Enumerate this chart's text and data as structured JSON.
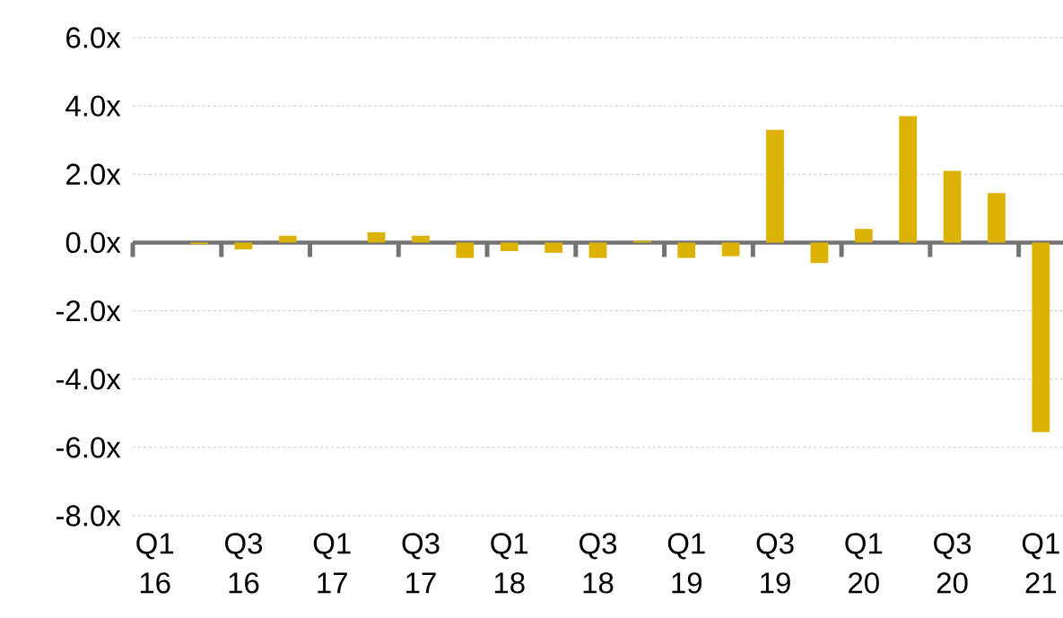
{
  "chart_data": {
    "type": "bar",
    "categories": [
      "Q1 16",
      null,
      "Q3 16",
      null,
      "Q1 17",
      null,
      "Q3 17",
      null,
      "Q1 18",
      null,
      "Q3 18",
      null,
      "Q1 19",
      null,
      "Q3 19",
      null,
      "Q1 20",
      null,
      "Q3 20",
      null,
      "Q1 21"
    ],
    "values": [
      0,
      -0.05,
      -0.2,
      0.2,
      0,
      0.3,
      0.2,
      -0.45,
      -0.25,
      -0.3,
      -0.45,
      0.05,
      -0.45,
      -0.4,
      3.3,
      -0.6,
      0.4,
      3.7,
      2.1,
      1.45,
      -5.55
    ],
    "color": "#dcb304",
    "ylim": [
      -8,
      6
    ],
    "yticks": [
      {
        "value": -8,
        "label": "-8.0x"
      },
      {
        "value": -6,
        "label": "-6.0x"
      },
      {
        "value": -4,
        "label": "-4.0x"
      },
      {
        "value": -2,
        "label": "-2.0x"
      },
      {
        "value": 0,
        "label": "0.0x"
      },
      {
        "value": 2,
        "label": "2.0x"
      },
      {
        "value": 4,
        "label": "4.0x"
      },
      {
        "value": 6,
        "label": "6.0x"
      }
    ],
    "grid": "y"
  }
}
